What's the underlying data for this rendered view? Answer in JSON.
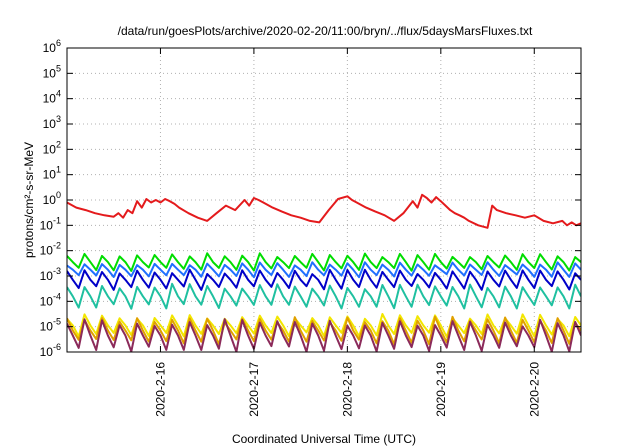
{
  "chart_data": {
    "type": "line",
    "title": "/data/run/goesPlots/archive/2020-02-20/11:00/bryn/../flux/5daysMarsFluxes.txt",
    "xlabel": "Coordinated Universal Time (UTC)",
    "ylabel": "protons/cm²-s-sr-MeV",
    "yscale": "log",
    "ylim": [
      1e-06,
      1000000.0
    ],
    "xlim": [
      0,
      5.5
    ],
    "x_ticks": [
      {
        "x": 1,
        "label": "2020-2-16"
      },
      {
        "x": 2,
        "label": "2020-2-17"
      },
      {
        "x": 3,
        "label": "2020-2-18"
      },
      {
        "x": 4,
        "label": "2020-2-19"
      },
      {
        "x": 5,
        "label": "2020-2-20"
      }
    ],
    "y_ticks": [
      {
        "exp": -6,
        "label": "10",
        "sup": "-6"
      },
      {
        "exp": -5,
        "label": "10",
        "sup": "-5"
      },
      {
        "exp": -4,
        "label": "10",
        "sup": "-4"
      },
      {
        "exp": -3,
        "label": "10",
        "sup": "-3"
      },
      {
        "exp": -2,
        "label": "10",
        "sup": "-2"
      },
      {
        "exp": -1,
        "label": "10",
        "sup": "-1"
      },
      {
        "exp": 0,
        "label": "10",
        "sup": "0"
      },
      {
        "exp": 1,
        "label": "10",
        "sup": "1"
      },
      {
        "exp": 2,
        "label": "10",
        "sup": "2"
      },
      {
        "exp": 3,
        "label": "10",
        "sup": "3"
      },
      {
        "exp": 4,
        "label": "10",
        "sup": "4"
      },
      {
        "exp": 5,
        "label": "10",
        "sup": "5"
      },
      {
        "exp": 6,
        "label": "10",
        "sup": "6"
      }
    ],
    "grid": true,
    "series": [
      {
        "color": "#e41a1c",
        "kind": "red",
        "x": [
          0,
          0.1,
          0.2,
          0.3,
          0.4,
          0.5,
          0.55,
          0.6,
          0.65,
          0.7,
          0.75,
          0.8,
          0.85,
          0.9,
          0.95,
          1.0,
          1.05,
          1.1,
          1.15,
          1.2,
          1.3,
          1.4,
          1.5,
          1.6,
          1.7,
          1.8,
          1.9,
          1.95,
          2.0,
          2.05,
          2.1,
          2.2,
          2.3,
          2.4,
          2.5,
          2.6,
          2.7,
          2.8,
          2.9,
          3.0,
          3.05,
          3.1,
          3.2,
          3.3,
          3.4,
          3.5,
          3.6,
          3.7,
          3.75,
          3.8,
          3.85,
          3.9,
          3.95,
          4.0,
          4.05,
          4.1,
          4.15,
          4.2,
          4.25,
          4.3,
          4.4,
          4.5,
          4.55,
          4.6,
          4.7,
          4.8,
          4.9,
          5.0,
          5.1,
          5.2,
          5.3,
          5.35,
          5.4,
          5.45,
          5.5
        ],
        "y": [
          0.8,
          0.5,
          0.4,
          0.3,
          0.25,
          0.22,
          0.3,
          0.2,
          0.4,
          0.3,
          0.9,
          0.5,
          1.1,
          0.8,
          1.0,
          0.8,
          1.1,
          0.9,
          0.7,
          0.5,
          0.3,
          0.2,
          0.15,
          0.3,
          0.6,
          0.4,
          1.0,
          0.6,
          1.2,
          1.0,
          0.8,
          0.5,
          0.35,
          0.25,
          0.2,
          0.15,
          0.13,
          0.4,
          1.1,
          1.4,
          1.0,
          0.8,
          0.5,
          0.35,
          0.25,
          0.15,
          0.3,
          0.9,
          0.5,
          1.6,
          1.2,
          0.8,
          1.3,
          0.9,
          0.6,
          0.4,
          0.3,
          0.25,
          0.2,
          0.15,
          0.1,
          0.08,
          0.6,
          0.4,
          0.3,
          0.25,
          0.2,
          0.25,
          0.15,
          0.12,
          0.15,
          0.1,
          0.13,
          0.1,
          0.12
        ]
      },
      {
        "color": "#00dd00",
        "kind": "saw",
        "base": -2.45,
        "amp": 0.35
      },
      {
        "color": "#1f6fff",
        "kind": "saw",
        "base": -2.75,
        "amp": 0.3
      },
      {
        "color": "#0000c8",
        "kind": "saw",
        "base": -3.15,
        "amp": 0.4
      },
      {
        "color": "#1fc0a0",
        "kind": "saw",
        "base": -3.8,
        "amp": 0.5
      },
      {
        "color": "#f2e600",
        "kind": "saw",
        "base": -4.95,
        "amp": 0.45
      },
      {
        "color": "#e0a000",
        "kind": "saw",
        "base": -5.15,
        "amp": 0.55
      },
      {
        "color": "#8b2a5a",
        "kind": "saw",
        "base": -5.35,
        "amp": 0.65
      }
    ]
  }
}
